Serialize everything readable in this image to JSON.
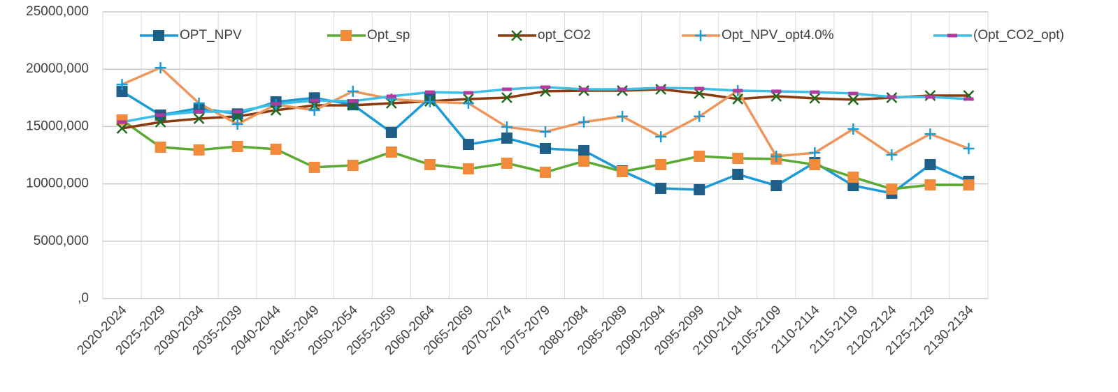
{
  "chart_data": {
    "type": "line",
    "categories": [
      "2020-2024",
      "2025-2029",
      "2030-2034",
      "2035-2039",
      "2040-2044",
      "2045-2049",
      "2050-2054",
      "2055-2059",
      "2060-2064",
      "2065-2069",
      "2070-2074",
      "2075-2079",
      "2080-2084",
      "2085-2089",
      "2090-2094",
      "2095-2099",
      "2100-2104",
      "2105-2109",
      "2110-2114",
      "2115-2119",
      "2120-2124",
      "2125-2129",
      "2130-2134"
    ],
    "series": [
      {
        "name": "OPT_NPV",
        "color": "#1a9bd7",
        "marker_color": "#1f5f87",
        "marker": "square",
        "values": [
          18060,
          16000,
          16600,
          16100,
          17150,
          17500,
          16900,
          14480,
          17500,
          13440,
          13990,
          13080,
          12900,
          11130,
          9610,
          9490,
          10830,
          9850,
          11860,
          9850,
          9180,
          11680,
          10220
        ]
      },
      {
        "name": "Opt_sp",
        "color": "#5aaa32",
        "marker_color": "#f28a3c",
        "marker": "square",
        "values": [
          15570,
          13200,
          12960,
          13260,
          13020,
          11440,
          11620,
          12770,
          11680,
          11310,
          11800,
          11010,
          11980,
          11070,
          11680,
          12410,
          12230,
          12170,
          11680,
          10580,
          9550,
          9910,
          9910
        ]
      },
      {
        "name": "opt_CO2",
        "color": "#8b3a0f",
        "marker_color": "#1e6b1e",
        "marker": "x",
        "values": [
          14840,
          15390,
          15690,
          15880,
          16420,
          16850,
          16850,
          17030,
          17210,
          17400,
          17520,
          18070,
          18130,
          18130,
          18250,
          17880,
          17400,
          17640,
          17460,
          17340,
          17520,
          17700,
          17700
        ]
      },
      {
        "name": "Opt_NPV_opt4.0%",
        "color": "#f0955a",
        "marker_color": "#1a9bd7",
        "marker": "plus",
        "values": [
          18670,
          20130,
          17030,
          15210,
          16910,
          16420,
          18070,
          17400,
          17150,
          17030,
          14960,
          14540,
          15390,
          15880,
          14110,
          15880,
          18130,
          12410,
          12710,
          14780,
          12530,
          14350,
          13080
        ]
      },
      {
        "name": "(Opt_CO2_opt)",
        "color": "#3cbfe6",
        "marker_color": "#b03aa0",
        "marker": "dash",
        "values": [
          15390,
          16000,
          16300,
          16300,
          16970,
          17270,
          17210,
          17640,
          18000,
          17940,
          18250,
          18430,
          18250,
          18250,
          18370,
          18310,
          18130,
          18070,
          18000,
          17880,
          17580,
          17580,
          17400
        ]
      }
    ],
    "ylim": [
      0,
      25000
    ],
    "yticks": [
      {
        "value": 0,
        "label": ",0"
      },
      {
        "value": 5000,
        "label": "5000,000"
      },
      {
        "value": 10000,
        "label": "10000,000"
      },
      {
        "value": 15000,
        "label": "15000,000"
      },
      {
        "value": 20000,
        "label": "20000,000"
      },
      {
        "value": 25000,
        "label": "25000,000"
      }
    ],
    "grid": true,
    "legend": "top"
  }
}
